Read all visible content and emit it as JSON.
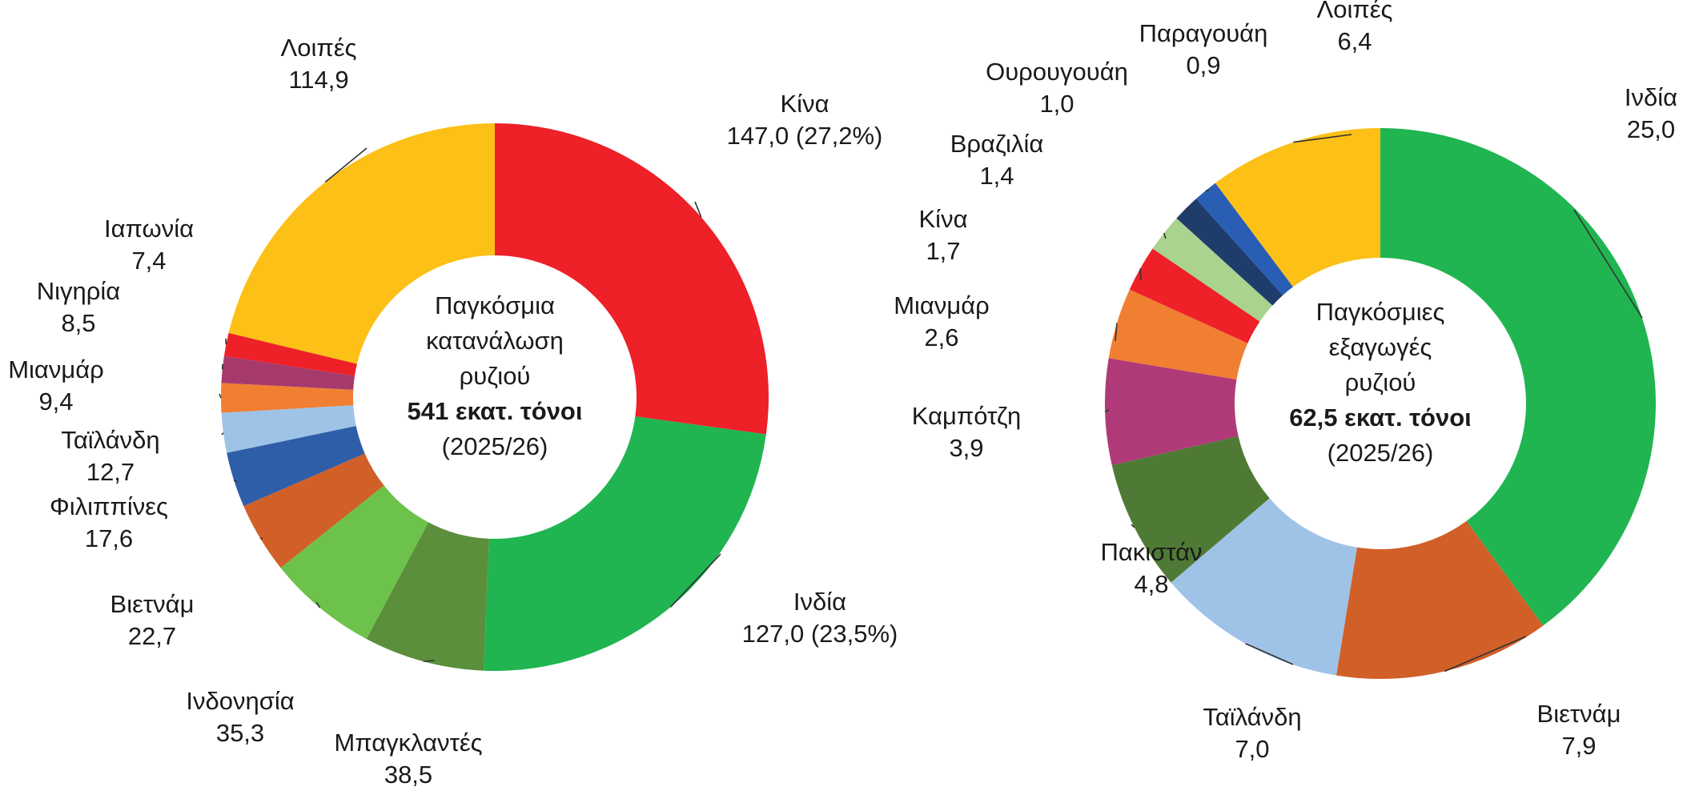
{
  "chart_data": [
    {
      "type": "pie",
      "donut": true,
      "center": {
        "lines": [
          "Παγκόσμια",
          "κατανάλωση",
          "ρυζιού"
        ],
        "value": "541 εκατ. τόνοι",
        "period": "(2025/26)"
      },
      "slices": [
        {
          "name": "Κίνα",
          "value": 147.0,
          "label_value": "147,0 (27,2%)",
          "color": "#ee2028"
        },
        {
          "name": "Ινδία",
          "value": 127.0,
          "label_value": "127,0 (23,5%)",
          "color": "#20b551"
        },
        {
          "name": "Μπαγκλαντές",
          "value": 38.5,
          "label_value": "38,5",
          "color": "#5b8f3c"
        },
        {
          "name": "Ινδονησία",
          "value": 35.3,
          "label_value": "35,3",
          "color": "#6cc24a"
        },
        {
          "name": "Βιετνάμ",
          "value": 22.7,
          "label_value": "22,7",
          "color": "#d15f28"
        },
        {
          "name": "Φιλιππίνες",
          "value": 17.6,
          "label_value": "17,6",
          "color": "#2f5ea8"
        },
        {
          "name": "Ταϊλάνδη",
          "value": 12.7,
          "label_value": "12,7",
          "color": "#9fc3e7"
        },
        {
          "name": "Μιανμάρ",
          "value": 9.4,
          "label_value": "9,4",
          "color": "#f07f32"
        },
        {
          "name": "Νιγηρία",
          "value": 8.5,
          "label_value": "8,5",
          "color": "#a63a6d"
        },
        {
          "name": "Ιαπωνία",
          "value": 7.4,
          "label_value": "7,4",
          "color": "#ee2028"
        },
        {
          "name": "Λοιπές",
          "value": 114.9,
          "label_value": "114,9",
          "color": "#fcc016"
        }
      ]
    },
    {
      "type": "pie",
      "donut": true,
      "center": {
        "lines": [
          "Παγκόσμιες",
          "εξαγωγές",
          "ρυζιού"
        ],
        "value": "62,5 εκατ. τόνοι",
        "period": "(2025/26)"
      },
      "slices": [
        {
          "name": "Ινδία",
          "value": 25.0,
          "label_value": "25,0",
          "color": "#20b551"
        },
        {
          "name": "Βιετνάμ",
          "value": 7.9,
          "label_value": "7,9",
          "color": "#d15f28"
        },
        {
          "name": "Ταϊλάνδη",
          "value": 7.0,
          "label_value": "7,0",
          "color": "#9fc3e7"
        },
        {
          "name": "Πακιστάν",
          "value": 4.8,
          "label_value": "4,8",
          "color": "#4f7a35"
        },
        {
          "name": "Καμπότζη",
          "value": 3.9,
          "label_value": "3,9",
          "color": "#b03a78"
        },
        {
          "name": "Μιανμάρ",
          "value": 2.6,
          "label_value": "2,6",
          "color": "#f07f32"
        },
        {
          "name": "Κίνα",
          "value": 1.7,
          "label_value": "1,7",
          "color": "#ee2028"
        },
        {
          "name": "Βραζιλία",
          "value": 1.4,
          "label_value": "1,4",
          "color": "#a9d38f"
        },
        {
          "name": "Ουρουγουάη",
          "value": 1.0,
          "label_value": "1,0",
          "color": "#1f3d6b"
        },
        {
          "name": "Παραγουάη",
          "value": 0.9,
          "label_value": "0,9",
          "color": "#2a5eb5"
        },
        {
          "name": "Λοιπές",
          "value": 6.4,
          "label_value": "6,4",
          "color": "#fcc016"
        }
      ]
    }
  ]
}
